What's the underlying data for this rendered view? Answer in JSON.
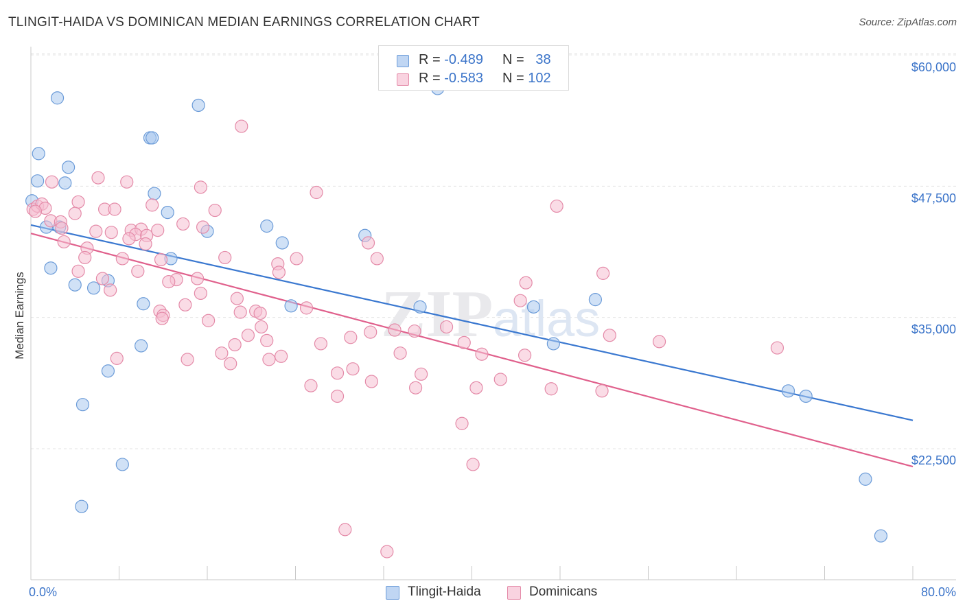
{
  "header": {
    "title": "TLINGIT-HAIDA VS DOMINICAN MEDIAN EARNINGS CORRELATION CHART",
    "source": "Source: ZipAtlas.com"
  },
  "legend": {
    "series1": {
      "r_label": "R =",
      "r_value": "-0.489",
      "n_label": "N =",
      "n_value": "38"
    },
    "series2": {
      "r_label": "R =",
      "r_value": "-0.583",
      "n_label": "N =",
      "n_value": "102"
    }
  },
  "colors": {
    "blue_fill": "#aac8ef",
    "blue_stroke": "#6b9bd8",
    "blue_line": "#3a78d0",
    "pink_fill": "#f5bfd1",
    "pink_stroke": "#e48aa8",
    "pink_line": "#e0608c",
    "grid": "#e3e3e3",
    "axis_text": "#3b74c9"
  },
  "chart_data": {
    "type": "scatter",
    "title": "TLINGIT-HAIDA VS DOMINICAN MEDIAN EARNINGS CORRELATION CHART",
    "ylabel": "Median Earnings",
    "xlabel": "",
    "xlim": [
      0,
      80
    ],
    "ylim": [
      11000,
      61500
    ],
    "x_tick_labels": [
      "0.0%",
      "80.0%"
    ],
    "y_ticks": [
      {
        "value": 22500,
        "label": "$22,500"
      },
      {
        "value": 35000,
        "label": "$35,000"
      },
      {
        "value": 47500,
        "label": "$47,500"
      },
      {
        "value": 60000,
        "label": "$60,000"
      }
    ],
    "grid": true,
    "legend_position": "top-center",
    "watermark": "ZIPatlas",
    "series": [
      {
        "name": "Tlingit-Haida",
        "color": "#aac8ef",
        "trend": {
          "x": [
            0,
            80
          ],
          "y": [
            43800,
            25200
          ]
        },
        "points": [
          [
            2.4,
            55900
          ],
          [
            0.7,
            50600
          ],
          [
            3.4,
            49300
          ],
          [
            15.2,
            55200
          ],
          [
            10.8,
            52100
          ],
          [
            11.0,
            52100
          ],
          [
            0.6,
            48000
          ],
          [
            3.1,
            47800
          ],
          [
            11.2,
            46800
          ],
          [
            0.1,
            46100
          ],
          [
            12.4,
            45000
          ],
          [
            1.4,
            43600
          ],
          [
            2.6,
            43600
          ],
          [
            16.0,
            43200
          ],
          [
            21.4,
            43700
          ],
          [
            22.8,
            42100
          ],
          [
            30.3,
            42800
          ],
          [
            1.8,
            39700
          ],
          [
            12.7,
            40600
          ],
          [
            4.0,
            38100
          ],
          [
            5.7,
            37800
          ],
          [
            7.0,
            38500
          ],
          [
            10.2,
            36300
          ],
          [
            23.6,
            36100
          ],
          [
            35.3,
            36000
          ],
          [
            45.6,
            36000
          ],
          [
            51.2,
            36700
          ],
          [
            10.0,
            32300
          ],
          [
            7.0,
            29900
          ],
          [
            47.4,
            32500
          ],
          [
            68.7,
            28000
          ],
          [
            70.3,
            27500
          ],
          [
            4.7,
            26700
          ],
          [
            8.3,
            21000
          ],
          [
            4.6,
            17000
          ],
          [
            75.7,
            19600
          ],
          [
            77.1,
            14200
          ],
          [
            36.9,
            56800
          ]
        ]
      },
      {
        "name": "Dominicans",
        "color": "#f5bfd1",
        "trend": {
          "x": [
            0,
            80
          ],
          "y": [
            43000,
            20800
          ]
        },
        "points": [
          [
            0.2,
            45300
          ],
          [
            0.6,
            45600
          ],
          [
            1.0,
            45800
          ],
          [
            1.3,
            45400
          ],
          [
            1.8,
            44200
          ],
          [
            0.4,
            45100
          ],
          [
            1.9,
            47900
          ],
          [
            6.1,
            48300
          ],
          [
            8.7,
            47900
          ],
          [
            15.4,
            47400
          ],
          [
            25.9,
            46900
          ],
          [
            4.3,
            46000
          ],
          [
            11.0,
            45700
          ],
          [
            6.7,
            45300
          ],
          [
            7.6,
            45300
          ],
          [
            16.7,
            45200
          ],
          [
            4.0,
            44900
          ],
          [
            2.7,
            44100
          ],
          [
            2.8,
            43500
          ],
          [
            5.9,
            43200
          ],
          [
            11.5,
            43300
          ],
          [
            7.3,
            43100
          ],
          [
            9.1,
            43300
          ],
          [
            10.0,
            43400
          ],
          [
            13.8,
            43900
          ],
          [
            15.6,
            43600
          ],
          [
            9.5,
            42900
          ],
          [
            10.5,
            42800
          ],
          [
            8.9,
            42500
          ],
          [
            3.0,
            42200
          ],
          [
            10.4,
            42000
          ],
          [
            5.1,
            41600
          ],
          [
            30.6,
            42100
          ],
          [
            17.6,
            40700
          ],
          [
            4.9,
            40700
          ],
          [
            8.3,
            40600
          ],
          [
            11.8,
            40500
          ],
          [
            22.4,
            40100
          ],
          [
            24.1,
            40600
          ],
          [
            31.4,
            40600
          ],
          [
            4.3,
            39400
          ],
          [
            9.7,
            39400
          ],
          [
            22.5,
            39300
          ],
          [
            6.5,
            38700
          ],
          [
            13.2,
            38600
          ],
          [
            15.1,
            38700
          ],
          [
            7.2,
            37600
          ],
          [
            12.5,
            38400
          ],
          [
            15.4,
            37300
          ],
          [
            18.7,
            36800
          ],
          [
            14.0,
            36200
          ],
          [
            11.7,
            35600
          ],
          [
            12.0,
            35200
          ],
          [
            19.0,
            35500
          ],
          [
            20.4,
            35600
          ],
          [
            20.8,
            35400
          ],
          [
            16.1,
            34700
          ],
          [
            25.0,
            35900
          ],
          [
            11.9,
            34900
          ],
          [
            20.9,
            34100
          ],
          [
            19.7,
            33300
          ],
          [
            30.8,
            33600
          ],
          [
            33.0,
            33800
          ],
          [
            34.8,
            33700
          ],
          [
            37.7,
            34100
          ],
          [
            29.0,
            33100
          ],
          [
            52.5,
            33300
          ],
          [
            18.5,
            32400
          ],
          [
            21.4,
            32800
          ],
          [
            26.3,
            32500
          ],
          [
            39.3,
            32600
          ],
          [
            44.4,
            36600
          ],
          [
            44.9,
            38300
          ],
          [
            57.0,
            32700
          ],
          [
            67.7,
            32100
          ],
          [
            17.3,
            31600
          ],
          [
            22.7,
            31300
          ],
          [
            33.5,
            31600
          ],
          [
            40.9,
            31500
          ],
          [
            44.8,
            31400
          ],
          [
            7.8,
            31100
          ],
          [
            14.2,
            31000
          ],
          [
            18.1,
            30600
          ],
          [
            21.6,
            31000
          ],
          [
            27.8,
            29700
          ],
          [
            29.2,
            30100
          ],
          [
            35.4,
            29600
          ],
          [
            42.6,
            29100
          ],
          [
            30.9,
            28900
          ],
          [
            25.4,
            28500
          ],
          [
            34.9,
            28300
          ],
          [
            40.4,
            28300
          ],
          [
            47.2,
            28200
          ],
          [
            51.8,
            28000
          ],
          [
            27.8,
            27500
          ],
          [
            39.1,
            24900
          ],
          [
            40.1,
            21000
          ],
          [
            28.5,
            14800
          ],
          [
            32.3,
            12700
          ],
          [
            47.7,
            45600
          ],
          [
            51.9,
            39200
          ],
          [
            19.1,
            53200
          ]
        ]
      }
    ]
  },
  "bottom_legend": {
    "item1": "Tlingit-Haida",
    "item2": "Dominicans"
  },
  "axis": {
    "x_left": "0.0%",
    "x_right": "80.0%",
    "y_label": "Median Earnings",
    "y22500": "$22,500",
    "y35000": "$35,000",
    "y47500": "$47,500",
    "y60000": "$60,000"
  }
}
